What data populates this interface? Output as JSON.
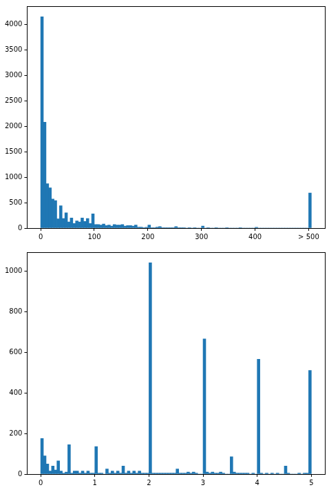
{
  "chart_data": [
    {
      "type": "histogram",
      "color": "#1f77b4",
      "grid": false,
      "bins": [
        0,
        5,
        10,
        15,
        20,
        25,
        30,
        35,
        40,
        45,
        50,
        55,
        60,
        65,
        70,
        75,
        80,
        85,
        90,
        95,
        100,
        105,
        110,
        115,
        120,
        125,
        130,
        135,
        140,
        145,
        150,
        155,
        160,
        165,
        170,
        175,
        180,
        185,
        190,
        195,
        200,
        205,
        210,
        215,
        220,
        225,
        230,
        235,
        240,
        245,
        250,
        255,
        260,
        265,
        270,
        275,
        280,
        285,
        290,
        295,
        300,
        305,
        310,
        315,
        320,
        325,
        330,
        335,
        340,
        345,
        350,
        355,
        360,
        365,
        370,
        375,
        380,
        385,
        390,
        395,
        400,
        405,
        410,
        415,
        420,
        425,
        430,
        435,
        440,
        445,
        450,
        455,
        460,
        465,
        470,
        475,
        480,
        485,
        490,
        495,
        500,
        505
      ],
      "values": [
        4150,
        2080,
        870,
        790,
        570,
        540,
        180,
        440,
        190,
        300,
        120,
        200,
        90,
        140,
        120,
        200,
        130,
        190,
        90,
        280,
        70,
        70,
        60,
        80,
        50,
        60,
        40,
        70,
        60,
        60,
        70,
        40,
        50,
        50,
        40,
        60,
        20,
        20,
        10,
        15,
        60,
        10,
        5,
        20,
        30,
        5,
        5,
        5,
        5,
        5,
        30,
        5,
        5,
        5,
        0,
        5,
        0,
        5,
        0,
        0,
        40,
        0,
        5,
        0,
        0,
        5,
        0,
        0,
        0,
        5,
        0,
        0,
        0,
        0,
        5,
        0,
        0,
        0,
        0,
        0,
        15,
        0,
        0,
        0,
        0,
        0,
        0,
        0,
        0,
        0,
        0,
        0,
        0,
        0,
        0,
        0,
        0,
        0,
        0,
        0,
        690
      ],
      "xlim": [
        -25.25,
        530.25
      ],
      "ylim": [
        0,
        4357
      ],
      "xticks": [
        0,
        100,
        200,
        300,
        400,
        {
          "value": 500,
          "label": "> 500"
        }
      ],
      "yticks": [
        0,
        500,
        1000,
        1500,
        2000,
        2500,
        3000,
        3500,
        4000
      ]
    },
    {
      "type": "histogram",
      "color": "#1f77b4",
      "grid": false,
      "bins": [
        0,
        0.05,
        0.1,
        0.15,
        0.2,
        0.25,
        0.3,
        0.35,
        0.4,
        0.45,
        0.5,
        0.55,
        0.6,
        0.65,
        0.7,
        0.75,
        0.8,
        0.85,
        0.9,
        0.95,
        1,
        1.05,
        1.1,
        1.15,
        1.2,
        1.25,
        1.3,
        1.35,
        1.4,
        1.45,
        1.5,
        1.55,
        1.6,
        1.65,
        1.7,
        1.75,
        1.8,
        1.85,
        1.9,
        1.95,
        2,
        2.05,
        2.1,
        2.15,
        2.2,
        2.25,
        2.3,
        2.35,
        2.4,
        2.45,
        2.5,
        2.55,
        2.6,
        2.65,
        2.7,
        2.75,
        2.8,
        2.85,
        2.9,
        2.95,
        3,
        3.05,
        3.1,
        3.15,
        3.2,
        3.25,
        3.3,
        3.35,
        3.4,
        3.45,
        3.5,
        3.55,
        3.6,
        3.65,
        3.7,
        3.75,
        3.8,
        3.85,
        3.9,
        3.95,
        4,
        4.05,
        4.1,
        4.15,
        4.2,
        4.25,
        4.3,
        4.35,
        4.4,
        4.45,
        4.5,
        4.55,
        4.6,
        4.65,
        4.7,
        4.75,
        4.8,
        4.85,
        4.9,
        4.95,
        5
      ],
      "values": [
        175,
        90,
        50,
        15,
        40,
        20,
        65,
        15,
        5,
        10,
        145,
        5,
        15,
        15,
        5,
        15,
        5,
        15,
        5,
        5,
        135,
        5,
        5,
        0,
        25,
        5,
        15,
        5,
        15,
        5,
        40,
        5,
        15,
        5,
        15,
        5,
        15,
        5,
        5,
        5,
        1040,
        5,
        5,
        5,
        5,
        5,
        5,
        5,
        5,
        5,
        25,
        5,
        5,
        5,
        10,
        5,
        10,
        5,
        0,
        0,
        665,
        10,
        5,
        10,
        5,
        5,
        10,
        5,
        0,
        0,
        85,
        10,
        5,
        5,
        5,
        5,
        5,
        0,
        5,
        0,
        565,
        5,
        0,
        5,
        0,
        5,
        0,
        5,
        0,
        0,
        40,
        5,
        0,
        0,
        0,
        5,
        0,
        5,
        5,
        510
      ],
      "xlim": [
        -0.25,
        5.25
      ],
      "ylim": [
        0,
        1092
      ],
      "xticks": [
        0,
        1,
        2,
        3,
        4,
        5
      ],
      "yticks": [
        0,
        200,
        400,
        600,
        800,
        1000
      ]
    }
  ]
}
